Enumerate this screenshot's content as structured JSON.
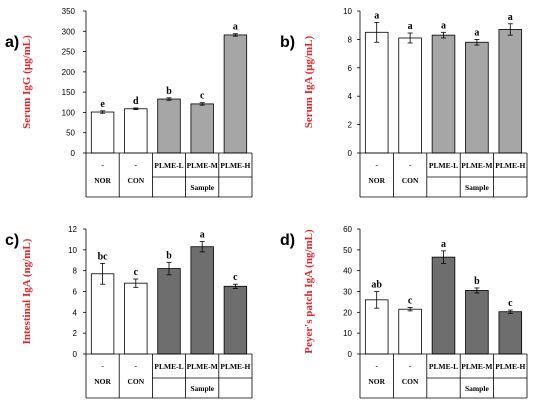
{
  "chart_data": [
    {
      "type": "bar",
      "panel": "a)",
      "ylabel_black": "Serum ",
      "ylabel_red": "IgG",
      "ylabel_unit": " (μg/mL)",
      "ylim": [
        0,
        350
      ],
      "yticks": [
        0,
        50,
        100,
        150,
        200,
        250,
        300,
        350
      ],
      "categories": [
        "NOR",
        "CON",
        "PLME-L",
        "PLME-M",
        "PLME-H"
      ],
      "dash_labels": [
        "-",
        "-"
      ],
      "group_label": "Sample",
      "values": [
        101,
        109,
        133,
        121,
        291
      ],
      "errors": [
        3,
        2,
        3,
        3,
        3
      ],
      "letters": [
        "e",
        "d",
        "b",
        "c",
        "a"
      ],
      "fills": [
        "#ffffff",
        "#ffffff",
        "#a6a6a6",
        "#a6a6a6",
        "#a6a6a6"
      ]
    },
    {
      "type": "bar",
      "panel": "b)",
      "ylabel_black": "Serum ",
      "ylabel_red": "IgA",
      "ylabel_unit": " (μg/mL)",
      "ylim": [
        0,
        10
      ],
      "yticks": [
        0,
        2,
        4,
        6,
        8,
        10
      ],
      "categories": [
        "NOR",
        "CON",
        "PLME-L",
        "PLME-M",
        "PLME-H"
      ],
      "dash_labels": [
        "-",
        "-"
      ],
      "group_label": "Sample",
      "values": [
        8.5,
        8.1,
        8.3,
        7.8,
        8.7
      ],
      "errors": [
        0.7,
        0.35,
        0.2,
        0.2,
        0.4
      ],
      "letters": [
        "a",
        "a",
        "a",
        "a",
        "a"
      ],
      "fills": [
        "#ffffff",
        "#ffffff",
        "#a6a6a6",
        "#a6a6a6",
        "#a6a6a6"
      ]
    },
    {
      "type": "bar",
      "panel": "c)",
      "ylabel_black": "Intestinal ",
      "ylabel_red": "IgA",
      "ylabel_unit": " (ng/mL)",
      "ylim": [
        0,
        12
      ],
      "yticks": [
        0,
        2,
        4,
        6,
        8,
        10,
        12
      ],
      "categories": [
        "NOR",
        "CON",
        "PLME-L",
        "PLME-M",
        "PLME-H"
      ],
      "dash_labels": [
        "-",
        "-"
      ],
      "group_label": "Sample",
      "values": [
        7.7,
        6.8,
        8.2,
        10.3,
        6.5
      ],
      "errors": [
        1.0,
        0.4,
        0.6,
        0.5,
        0.2
      ],
      "letters": [
        "bc",
        "c",
        "b",
        "a",
        "c"
      ],
      "fills": [
        "#ffffff",
        "#ffffff",
        "#6e6e6e",
        "#6e6e6e",
        "#6e6e6e"
      ]
    },
    {
      "type": "bar",
      "panel": "d)",
      "ylabel_black": "Peyer's patch ",
      "ylabel_red": "IgA",
      "ylabel_unit": " (ng/mL)",
      "ylim": [
        0,
        60
      ],
      "yticks": [
        0,
        10,
        20,
        30,
        40,
        50,
        60
      ],
      "categories": [
        "NOR",
        "CON",
        "PLME-L",
        "PLME-M",
        "PLME-H"
      ],
      "dash_labels": [
        "-",
        "-"
      ],
      "group_label": "Sample",
      "values": [
        26,
        21.5,
        46.5,
        30.5,
        20.3
      ],
      "errors": [
        4,
        0.8,
        3,
        1.2,
        0.8
      ],
      "letters": [
        "ab",
        "c",
        "a",
        "b",
        "c"
      ],
      "fills": [
        "#ffffff",
        "#ffffff",
        "#6e6e6e",
        "#6e6e6e",
        "#6e6e6e"
      ]
    }
  ]
}
